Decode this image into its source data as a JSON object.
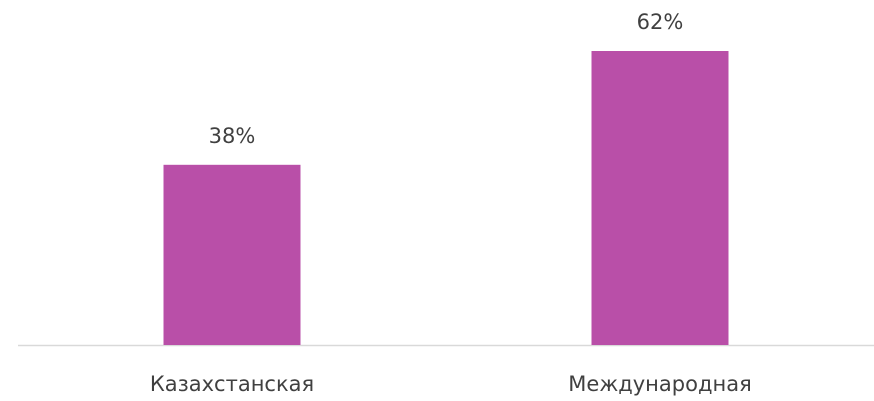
{
  "chart_data": {
    "type": "bar",
    "categories": [
      "Казахстанская",
      "Международная"
    ],
    "values": [
      38,
      62
    ],
    "value_labels": [
      "38%",
      "62%"
    ],
    "color": "#b94fa8"
  }
}
